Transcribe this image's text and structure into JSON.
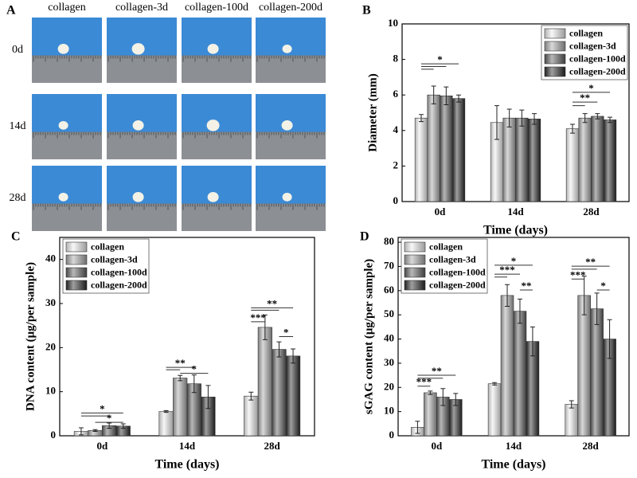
{
  "photo_panel": {
    "label": "A",
    "columns": [
      "collagen",
      "collagen-3d",
      "collagen-100d",
      "collagen-200d"
    ],
    "rows": [
      "0d",
      "14d",
      "28d"
    ]
  },
  "chart_data": [
    {
      "type": "bar",
      "panel": "B",
      "x_label": "Time (days)",
      "y_label": "Diameter (mm)",
      "categories": [
        "0d",
        "14d",
        "28d"
      ],
      "series": [
        {
          "name": "collagen",
          "color": "#ededed",
          "values": [
            4.7,
            4.45,
            4.1
          ],
          "errors": [
            0.2,
            0.95,
            0.25
          ]
        },
        {
          "name": "collagen-3d",
          "color": "#a8a8a8",
          "values": [
            6.0,
            4.7,
            4.7
          ],
          "errors": [
            0.5,
            0.5,
            0.25
          ]
        },
        {
          "name": "collagen-100d",
          "color": "#5e5e5e",
          "values": [
            5.95,
            4.7,
            4.8
          ],
          "errors": [
            0.5,
            0.45,
            0.15
          ]
        },
        {
          "name": "collagen-200d",
          "color": "#2a2a2a",
          "values": [
            5.8,
            4.65,
            4.6
          ],
          "errors": [
            0.2,
            0.3,
            0.15
          ]
        }
      ],
      "ylim": [
        0,
        10
      ],
      "yticks": [
        0,
        2,
        4,
        6,
        8,
        10
      ],
      "legend": "upper right",
      "annotations": [
        "*",
        "**",
        "*"
      ]
    },
    {
      "type": "bar",
      "panel": "C",
      "x_label": "Time (days)",
      "y_label": "DNA content (μg/per sample)",
      "categories": [
        "0d",
        "14d",
        "28d"
      ],
      "series": [
        {
          "name": "collagen",
          "color": "#ededed",
          "values": [
            1.0,
            5.5,
            9.0
          ],
          "errors": [
            0.8,
            0.2,
            0.9
          ]
        },
        {
          "name": "collagen-3d",
          "color": "#a8a8a8",
          "values": [
            1.2,
            13.1,
            24.6
          ],
          "errors": [
            0.2,
            0.6,
            2.8
          ]
        },
        {
          "name": "collagen-100d",
          "color": "#5e5e5e",
          "values": [
            2.3,
            11.8,
            19.6
          ],
          "errors": [
            0.6,
            2.0,
            1.7
          ]
        },
        {
          "name": "collagen-200d",
          "color": "#2a2a2a",
          "values": [
            2.2,
            8.8,
            18.1
          ],
          "errors": [
            0.5,
            2.6,
            1.6
          ]
        }
      ],
      "ylim": [
        0,
        45
      ],
      "yticks": [
        0,
        10,
        20,
        30,
        40
      ],
      "legend": "upper left",
      "annotations": [
        "*",
        "*",
        "**",
        "*",
        "**",
        "***",
        "*"
      ]
    },
    {
      "type": "bar",
      "panel": "D",
      "x_label": "Time (days)",
      "y_label": "sGAG content (μg/per sample)",
      "categories": [
        "0d",
        "14d",
        "28d"
      ],
      "series": [
        {
          "name": "collagen",
          "color": "#ededed",
          "values": [
            3.5,
            21.5,
            13.0
          ],
          "errors": [
            2.5,
            0.5,
            1.5
          ]
        },
        {
          "name": "collagen-3d",
          "color": "#a8a8a8",
          "values": [
            17.8,
            58.0,
            58.0
          ],
          "errors": [
            0.7,
            4.5,
            8.0
          ]
        },
        {
          "name": "collagen-100d",
          "color": "#5e5e5e",
          "values": [
            16.0,
            51.5,
            52.5
          ],
          "errors": [
            3.5,
            5.0,
            6.5
          ]
        },
        {
          "name": "collagen-200d",
          "color": "#2a2a2a",
          "values": [
            15.0,
            39.0,
            40.0
          ],
          "errors": [
            2.5,
            6.0,
            8.0
          ]
        }
      ],
      "ylim": [
        0,
        82
      ],
      "yticks": [
        0,
        10,
        20,
        30,
        40,
        50,
        60,
        70,
        80
      ],
      "legend": "upper left",
      "annotations": [
        "**",
        "***",
        "*",
        "***",
        "**",
        "**",
        "***",
        "*"
      ]
    }
  ]
}
